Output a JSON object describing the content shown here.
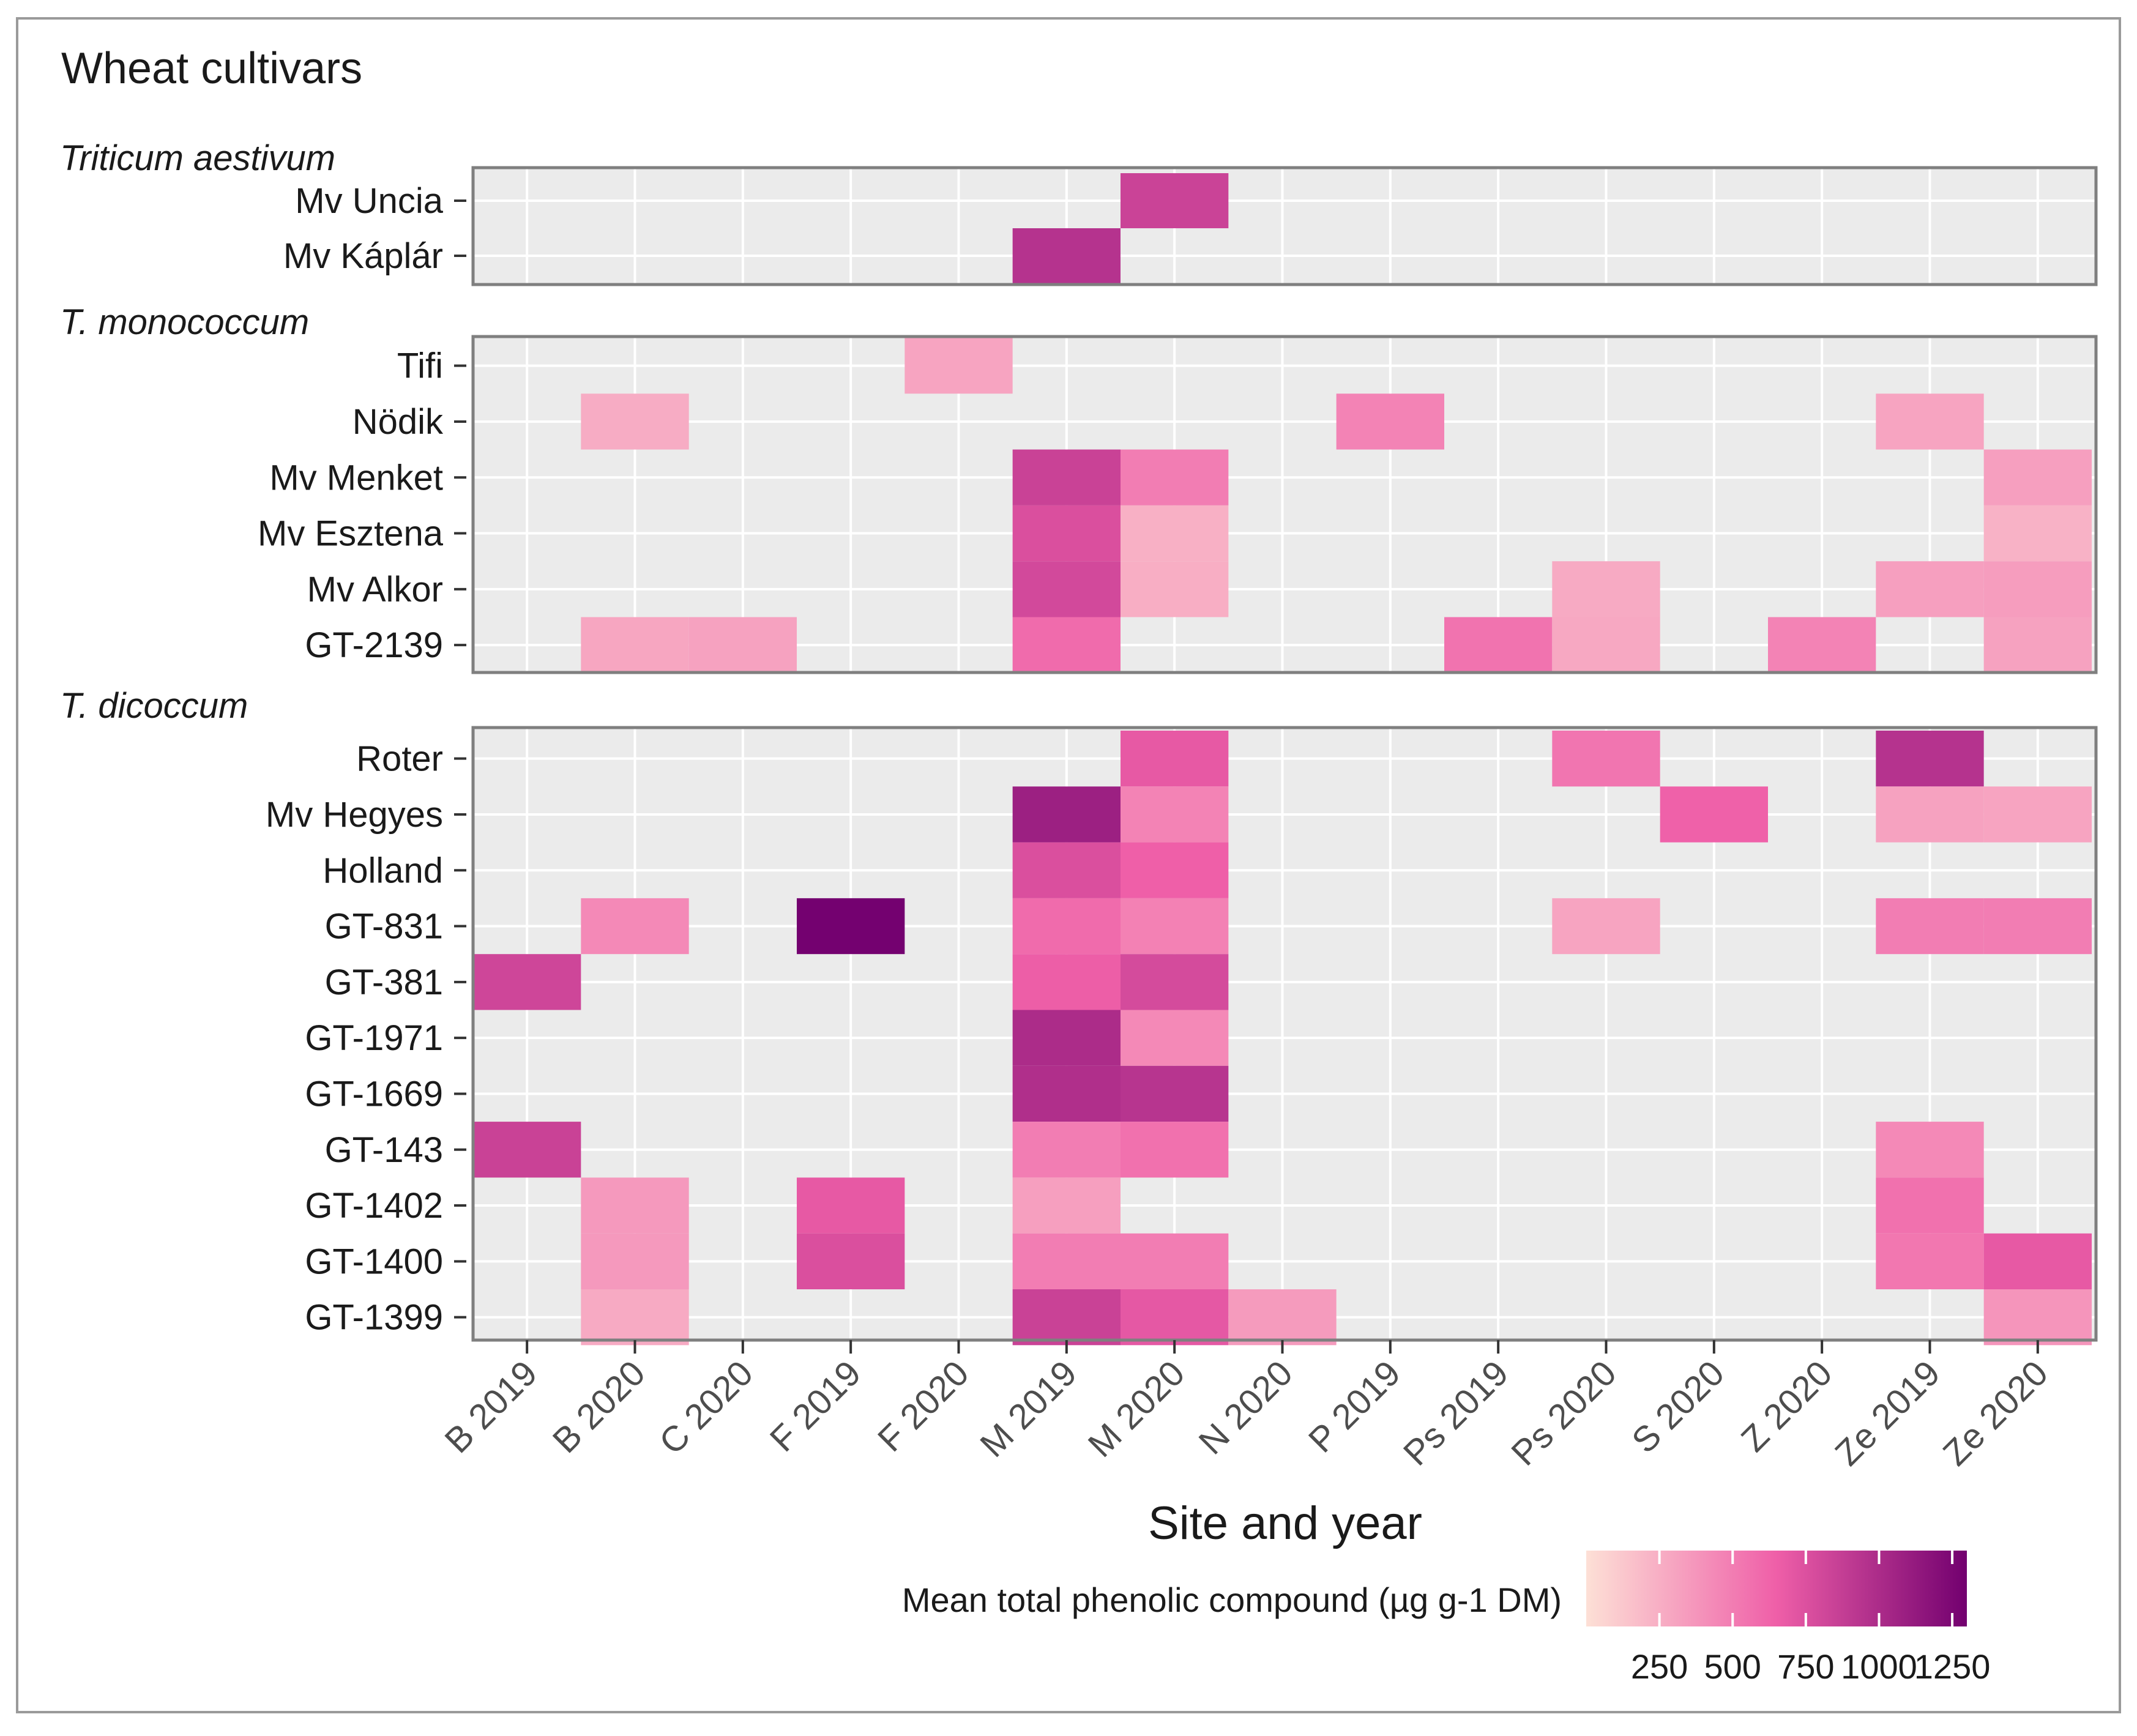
{
  "chart_data": {
    "type": "heatmap",
    "title": "Wheat cultivars",
    "xlabel": "Site and year",
    "legend_title": "Mean total phenolic compound (µg g-1 DM)",
    "legend_ticks": [
      "250",
      "500",
      "750",
      "1000",
      "1250"
    ],
    "color_range": [
      0,
      1300
    ],
    "colors": {
      "low": "#fde0d6",
      "mid": "#ef5fa8",
      "high": "#72006f",
      "panel_bg": "#ebebeb",
      "grid": "#ffffff"
    },
    "categories": [
      "B 2019",
      "B 2020",
      "C 2020",
      "F 2019",
      "F 2020",
      "M 2019",
      "M 2020",
      "N 2020",
      "P 2019",
      "Ps 2019",
      "Ps 2020",
      "S 2020",
      "Z 2020",
      "Ze 2019",
      "Ze 2020"
    ],
    "groups": [
      {
        "name": "Triticum aestivum",
        "rows": [
          {
            "label": "Mv Uncia",
            "cells": [
              {
                "x": "M 2020",
                "value": 840
              }
            ]
          },
          {
            "label": "Mv Káplár",
            "cells": [
              {
                "x": "M 2019",
                "value": 950
              }
            ]
          }
        ]
      },
      {
        "name": "T. monococcum",
        "rows": [
          {
            "label": "Tifi",
            "cells": [
              {
                "x": "F 2020",
                "value": 300
              }
            ]
          },
          {
            "label": "Nödik",
            "cells": [
              {
                "x": "B 2020",
                "value": 260
              },
              {
                "x": "P 2019",
                "value": 470
              },
              {
                "x": "Ze 2019",
                "value": 300
              }
            ]
          },
          {
            "label": "Mv Menket",
            "cells": [
              {
                "x": "M 2019",
                "value": 850
              },
              {
                "x": "M 2020",
                "value": 500
              },
              {
                "x": "Ze 2020",
                "value": 330
              }
            ]
          },
          {
            "label": "Mv Esztena",
            "cells": [
              {
                "x": "M 2019",
                "value": 760
              },
              {
                "x": "M 2020",
                "value": 240
              },
              {
                "x": "Ze 2020",
                "value": 230
              }
            ]
          },
          {
            "label": "Mv Alkor",
            "cells": [
              {
                "x": "M 2019",
                "value": 800
              },
              {
                "x": "M 2020",
                "value": 250
              },
              {
                "x": "Ps 2020",
                "value": 270
              },
              {
                "x": "Ze 2019",
                "value": 330
              },
              {
                "x": "Ze 2020",
                "value": 340
              }
            ]
          },
          {
            "label": "GT-2139",
            "cells": [
              {
                "x": "B 2020",
                "value": 290
              },
              {
                "x": "C 2020",
                "value": 310
              },
              {
                "x": "M 2019",
                "value": 590
              },
              {
                "x": "Ps 2019",
                "value": 550
              },
              {
                "x": "Ps 2020",
                "value": 280
              },
              {
                "x": "Z 2020",
                "value": 470
              },
              {
                "x": "Ze 2020",
                "value": 310
              }
            ]
          }
        ]
      },
      {
        "name": "T. dicoccum",
        "rows": [
          {
            "label": "Roter",
            "cells": [
              {
                "x": "M 2020",
                "value": 690
              },
              {
                "x": "Ps 2020",
                "value": 540
              },
              {
                "x": "Ze 2019",
                "value": 950
              }
            ]
          },
          {
            "label": "Mv Hegyes",
            "cells": [
              {
                "x": "M 2019",
                "value": 1080
              },
              {
                "x": "M 2020",
                "value": 470
              },
              {
                "x": "S 2020",
                "value": 640
              },
              {
                "x": "Ze 2019",
                "value": 310
              },
              {
                "x": "Ze 2020",
                "value": 300
              }
            ]
          },
          {
            "label": "Holland",
            "cells": [
              {
                "x": "M 2019",
                "value": 760
              },
              {
                "x": "M 2020",
                "value": 650
              }
            ]
          },
          {
            "label": "GT-831",
            "cells": [
              {
                "x": "B 2020",
                "value": 440
              },
              {
                "x": "F 2019",
                "value": 1290
              },
              {
                "x": "M 2019",
                "value": 590
              },
              {
                "x": "M 2020",
                "value": 480
              },
              {
                "x": "Ps 2020",
                "value": 300
              },
              {
                "x": "Ze 2019",
                "value": 500
              },
              {
                "x": "Ze 2020",
                "value": 500
              }
            ]
          },
          {
            "label": "GT-381",
            "cells": [
              {
                "x": "B 2019",
                "value": 820
              },
              {
                "x": "M 2019",
                "value": 660
              },
              {
                "x": "M 2020",
                "value": 790
              }
            ]
          },
          {
            "label": "GT-1971",
            "cells": [
              {
                "x": "M 2019",
                "value": 1000
              },
              {
                "x": "M 2020",
                "value": 440
              }
            ]
          },
          {
            "label": "GT-1669",
            "cells": [
              {
                "x": "M 2019",
                "value": 980
              },
              {
                "x": "M 2020",
                "value": 940
              }
            ]
          },
          {
            "label": "GT-143",
            "cells": [
              {
                "x": "B 2019",
                "value": 850
              },
              {
                "x": "M 2019",
                "value": 500
              },
              {
                "x": "M 2020",
                "value": 560
              },
              {
                "x": "Ze 2019",
                "value": 440
              }
            ]
          },
          {
            "label": "GT-1402",
            "cells": [
              {
                "x": "B 2020",
                "value": 360
              },
              {
                "x": "F 2019",
                "value": 690
              },
              {
                "x": "M 2019",
                "value": 330
              },
              {
                "x": "Ze 2019",
                "value": 560
              }
            ]
          },
          {
            "label": "GT-1400",
            "cells": [
              {
                "x": "B 2020",
                "value": 360
              },
              {
                "x": "F 2019",
                "value": 760
              },
              {
                "x": "M 2019",
                "value": 500
              },
              {
                "x": "M 2020",
                "value": 500
              },
              {
                "x": "Ze 2019",
                "value": 530
              },
              {
                "x": "Ze 2020",
                "value": 690
              }
            ]
          },
          {
            "label": "GT-1399",
            "cells": [
              {
                "x": "B 2020",
                "value": 270
              },
              {
                "x": "M 2019",
                "value": 850
              },
              {
                "x": "M 2020",
                "value": 700
              },
              {
                "x": "N 2020",
                "value": 350
              },
              {
                "x": "Ze 2020",
                "value": 380
              }
            ]
          }
        ]
      }
    ]
  }
}
